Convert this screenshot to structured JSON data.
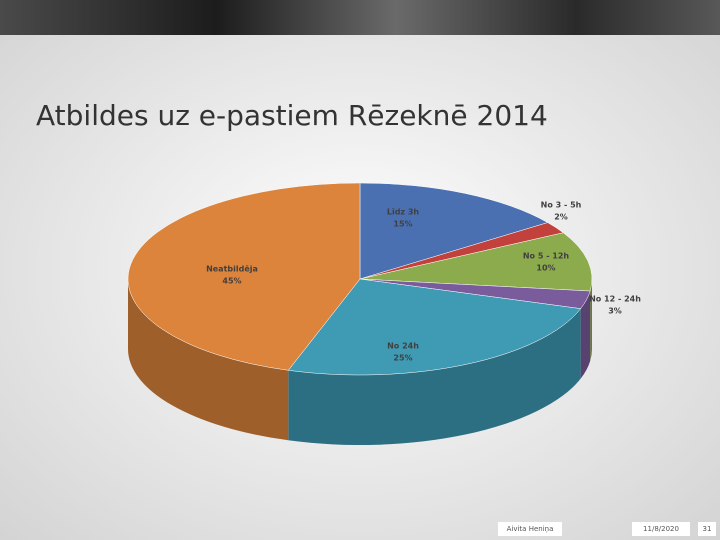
{
  "chart_data": {
    "type": "pie",
    "title": "Atbildes uz e-pastiem Rēzeknē 2014",
    "categories": [
      "Līdz 3h",
      "No 3 - 5h",
      "No 5 - 12h",
      "No 12 - 24h",
      "No 24h",
      "Neatbildēja"
    ],
    "values": [
      15,
      2,
      10,
      3,
      25,
      45
    ],
    "value_labels": [
      "15%",
      "2%",
      "10%",
      "3%",
      "25%",
      "45%"
    ],
    "colors": [
      "#4a70b2",
      "#c2413c",
      "#8cab4c",
      "#7a5b9c",
      "#3f9ab4",
      "#dc843c"
    ]
  },
  "footer": {
    "author": "Aivita Heniņa",
    "date": "11/8/2020",
    "page": "31"
  }
}
